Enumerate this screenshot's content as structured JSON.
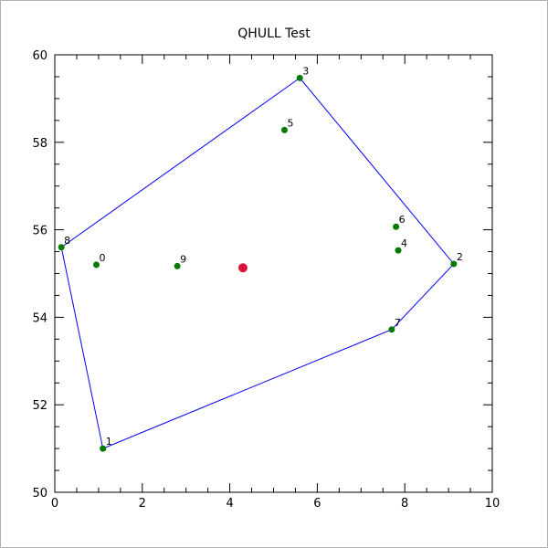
{
  "chart_data": {
    "type": "scatter",
    "title": "QHULL Test",
    "xlabel": "",
    "ylabel": "",
    "xlim": [
      0,
      10
    ],
    "ylim": [
      50,
      60
    ],
    "x_ticks": [
      "0",
      "2",
      "4",
      "6",
      "8",
      "10"
    ],
    "y_ticks": [
      "50",
      "52",
      "54",
      "56",
      "58",
      "60"
    ],
    "grid": false,
    "points": [
      {
        "label": "0",
        "x": 0.95,
        "y": 55.2
      },
      {
        "label": "1",
        "x": 1.1,
        "y": 51.0
      },
      {
        "label": "2",
        "x": 9.12,
        "y": 55.22
      },
      {
        "label": "3",
        "x": 5.6,
        "y": 59.47
      },
      {
        "label": "4",
        "x": 7.85,
        "y": 55.53
      },
      {
        "label": "5",
        "x": 5.25,
        "y": 58.28
      },
      {
        "label": "6",
        "x": 7.8,
        "y": 56.07
      },
      {
        "label": "7",
        "x": 7.7,
        "y": 53.72
      },
      {
        "label": "8",
        "x": 0.15,
        "y": 55.6
      },
      {
        "label": "9",
        "x": 2.8,
        "y": 55.17
      }
    ],
    "hull_order": [
      8,
      3,
      2,
      7,
      1,
      8
    ],
    "centroid": {
      "x": 4.3,
      "y": 55.13
    },
    "colors": {
      "points": "#007a00",
      "hull": "#0000ff",
      "centroid": "#dc143c",
      "axis": "#000000"
    }
  }
}
